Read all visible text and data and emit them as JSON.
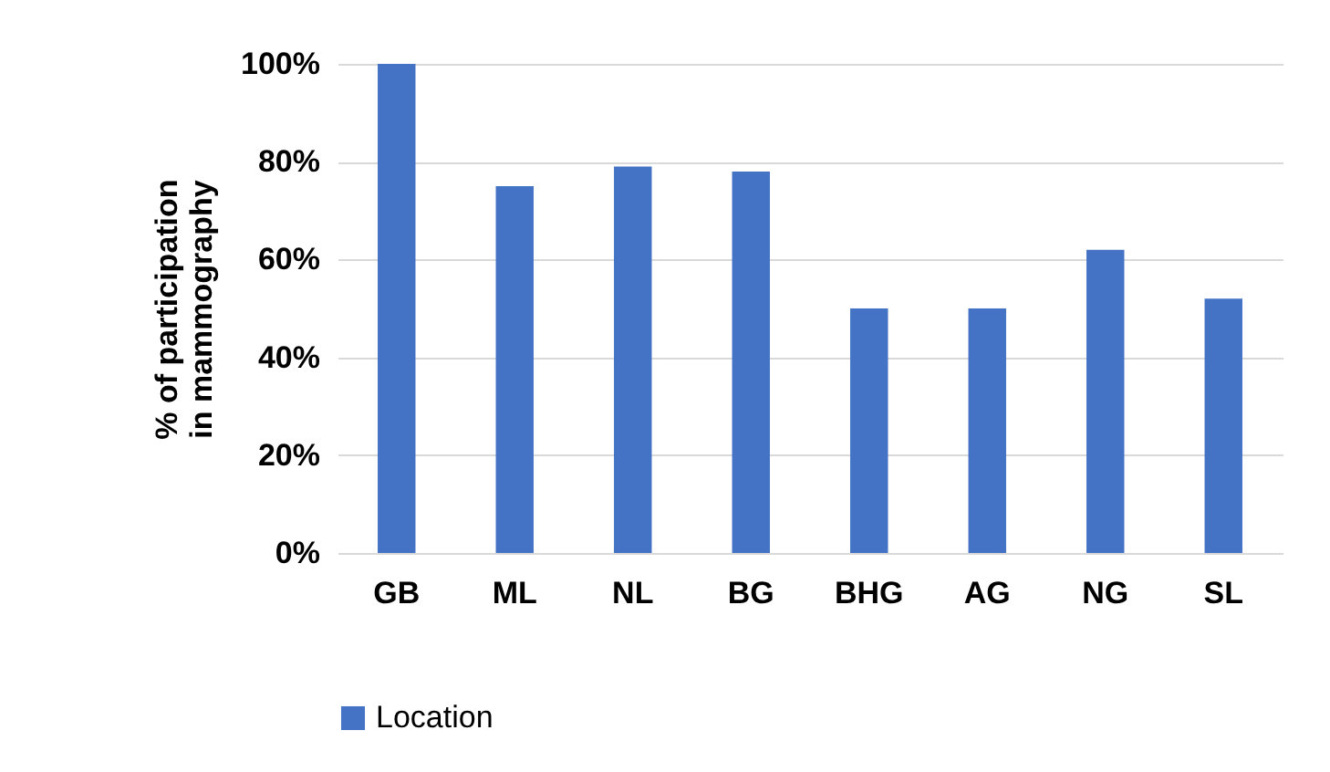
{
  "chart_data": {
    "type": "bar",
    "ylabel": "% of participation in mammography",
    "categories": [
      "GB",
      "ML",
      "NL",
      "BG",
      "BHG",
      "AG",
      "NG",
      "SL"
    ],
    "series": [
      {
        "name": "Location",
        "color": "#4472c4",
        "values": [
          100,
          75,
          79,
          78,
          50,
          50,
          62,
          52
        ]
      }
    ],
    "ylim": [
      0,
      100
    ],
    "yticks": [
      {
        "value": 0,
        "label": "0%"
      },
      {
        "value": 20,
        "label": "20%"
      },
      {
        "value": 40,
        "label": "40%"
      },
      {
        "value": 60,
        "label": "60%"
      },
      {
        "value": 80,
        "label": "80%"
      },
      {
        "value": 100,
        "label": "100%"
      }
    ],
    "grid": "y",
    "legend": "bottom"
  }
}
